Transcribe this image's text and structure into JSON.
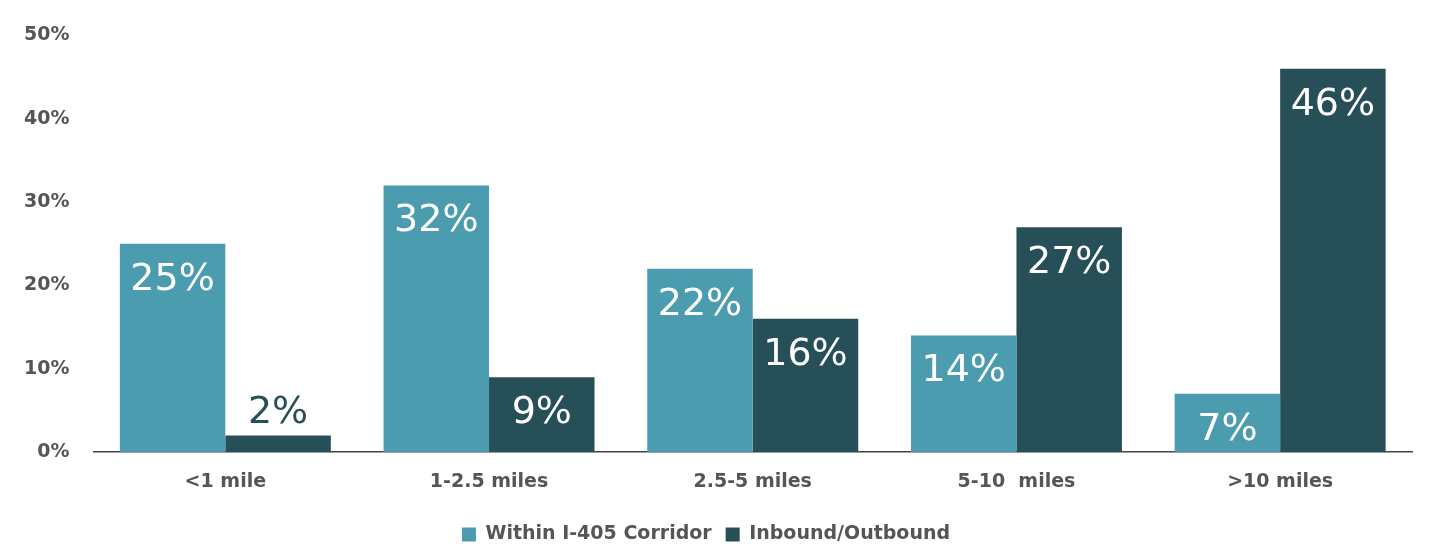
{
  "chart_data": {
    "type": "bar",
    "categories": [
      "<1 mile",
      "1-2.5 miles",
      "2.5-5 miles",
      "5-10  miles",
      ">10 miles"
    ],
    "series": [
      {
        "name": "Within I-405 Corridor",
        "color": "#4b9cae",
        "values": [
          25,
          32,
          22,
          14,
          7
        ],
        "value_labels": [
          "25%",
          "32%",
          "22%",
          "14%",
          "7%"
        ]
      },
      {
        "name": "Inbound/Outbound",
        "color": "#264f58",
        "values": [
          2,
          9,
          16,
          27,
          46
        ],
        "value_labels": [
          "2%",
          "9%",
          "16%",
          "27%",
          "46%"
        ]
      }
    ],
    "ylim": [
      0,
      50
    ],
    "yticks": [
      {
        "value": 0,
        "label": "0%"
      },
      {
        "value": 10,
        "label": "10%"
      },
      {
        "value": 20,
        "label": "20%"
      },
      {
        "value": 30,
        "label": "30%"
      },
      {
        "value": 40,
        "label": "40%"
      },
      {
        "value": 50,
        "label": "50%"
      }
    ],
    "grid": false,
    "legend": "bottom"
  }
}
